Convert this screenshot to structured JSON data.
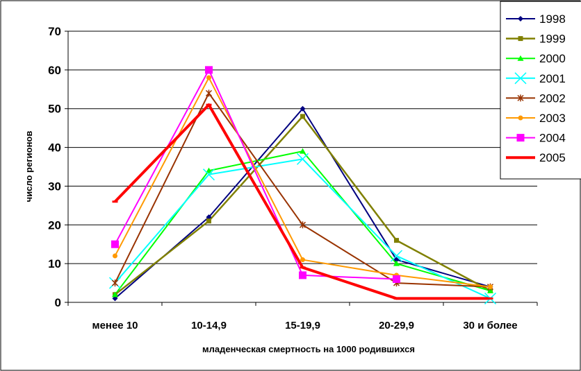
{
  "chart_data": {
    "type": "line",
    "title": "",
    "xlabel": "младенческая смертность на 1000 родившихся",
    "ylabel": "число регионов",
    "categories": [
      "менее 10",
      "10-14,9",
      "15-19,9",
      "20-29,9",
      "30 и более"
    ],
    "ylim": [
      0,
      70
    ],
    "yticks": [
      "0",
      "10",
      "20",
      "30",
      "40",
      "50",
      "60",
      "70"
    ],
    "grid": true,
    "legend_position": "top-right",
    "series": [
      {
        "name": "1998",
        "values": [
          1,
          22,
          50,
          11,
          4
        ],
        "color": "#000080",
        "marker": "diamond",
        "width": 2
      },
      {
        "name": "1999",
        "values": [
          2,
          21,
          48,
          16,
          3
        ],
        "color": "#808000",
        "marker": "square",
        "width": 2.5
      },
      {
        "name": "2000",
        "values": [
          2,
          34,
          39,
          10,
          3
        ],
        "color": "#00ff00",
        "marker": "triangle",
        "width": 2
      },
      {
        "name": "2001",
        "values": [
          5,
          33,
          37,
          12,
          1
        ],
        "color": "#00ffff",
        "marker": "x",
        "width": 2
      },
      {
        "name": "2002",
        "values": [
          5,
          54,
          20,
          5,
          4
        ],
        "color": "#993300",
        "marker": "star",
        "width": 2
      },
      {
        "name": "2003",
        "values": [
          12,
          58,
          11,
          7,
          4
        ],
        "color": "#ff9900",
        "marker": "circle",
        "width": 2
      },
      {
        "name": "2004",
        "values": [
          15,
          60,
          7,
          6,
          null
        ],
        "color": "#ff00ff",
        "marker": "bigsquare",
        "width": 2
      },
      {
        "name": "2005",
        "values": [
          26,
          51,
          9,
          1,
          1
        ],
        "color": "#ff0000",
        "marker": "dash",
        "width": 4
      }
    ]
  }
}
